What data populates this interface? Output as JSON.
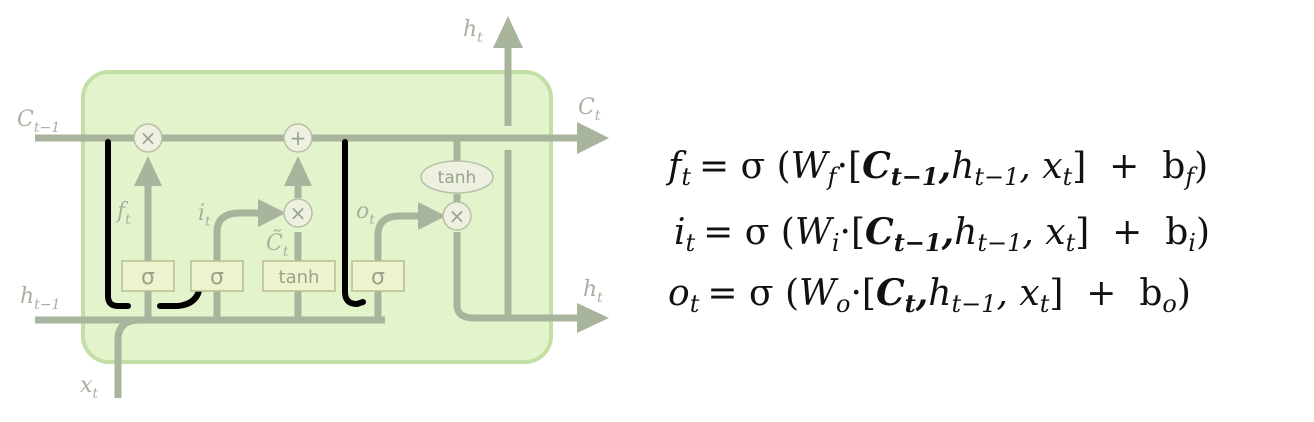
{
  "diagram": {
    "labels": {
      "c_prev": "C",
      "c_prev_sub": "t−1",
      "c_t": "C",
      "c_t_sub": "t",
      "h_prev": "h",
      "h_prev_sub": "t−1",
      "h_t_top": "h",
      "h_t_top_sub": "t",
      "h_t_right": "h",
      "h_t_right_sub": "t",
      "x_t": "x",
      "x_t_sub": "t",
      "f_t": "f",
      "f_t_sub": "t",
      "i_t": "i",
      "i_t_sub": "t",
      "o_t": "o",
      "o_t_sub": "t",
      "c_tilde": "C̃",
      "c_tilde_sub": "t"
    },
    "gates": {
      "forget": "σ",
      "input": "σ",
      "candidate": "tanh",
      "output": "σ"
    },
    "ops": {
      "mult1": "×",
      "add": "+",
      "mult2": "×",
      "mult3": "×",
      "tanh_oval": "tanh"
    },
    "colors": {
      "cell_fill": "#e3f3cc",
      "cell_stroke": "#c3dfa5",
      "line": "#a9b49c",
      "gate_fill": "#eef2cf",
      "peephole": "#000000"
    }
  },
  "equations": [
    {
      "lhs": "f",
      "lhs_sub": "t",
      "eq": "= σ (",
      "w": "W",
      "w_sub": "f",
      "dot": "·[",
      "c": "C",
      "c_sub": "t−1",
      "comma": ",",
      "h": "h",
      "h_sub": "t−1",
      "x_part": ", x",
      "x_sub": "t",
      "close": "]  +  b",
      "b_sub": "f",
      "end": ")"
    },
    {
      "lhs": "i",
      "lhs_sub": "t",
      "eq": "= σ (",
      "w": "W",
      "w_sub": "i",
      "dot": "·[",
      "c": "C",
      "c_sub": "t−1",
      "comma": ",",
      "h": "h",
      "h_sub": "t−1",
      "x_part": ", x",
      "x_sub": "t",
      "close": "]  +  b",
      "b_sub": "i",
      "end": ")"
    },
    {
      "lhs": "o",
      "lhs_sub": "t",
      "eq": "= σ (",
      "w": "W",
      "w_sub": "o",
      "dot": "·[",
      "c": "C",
      "c_sub": "t",
      "comma": ",",
      "h": "h",
      "h_sub": "t−1",
      "x_part": ", x",
      "x_sub": "t",
      "close": "]  +  b",
      "b_sub": "o",
      "end": ")"
    }
  ]
}
